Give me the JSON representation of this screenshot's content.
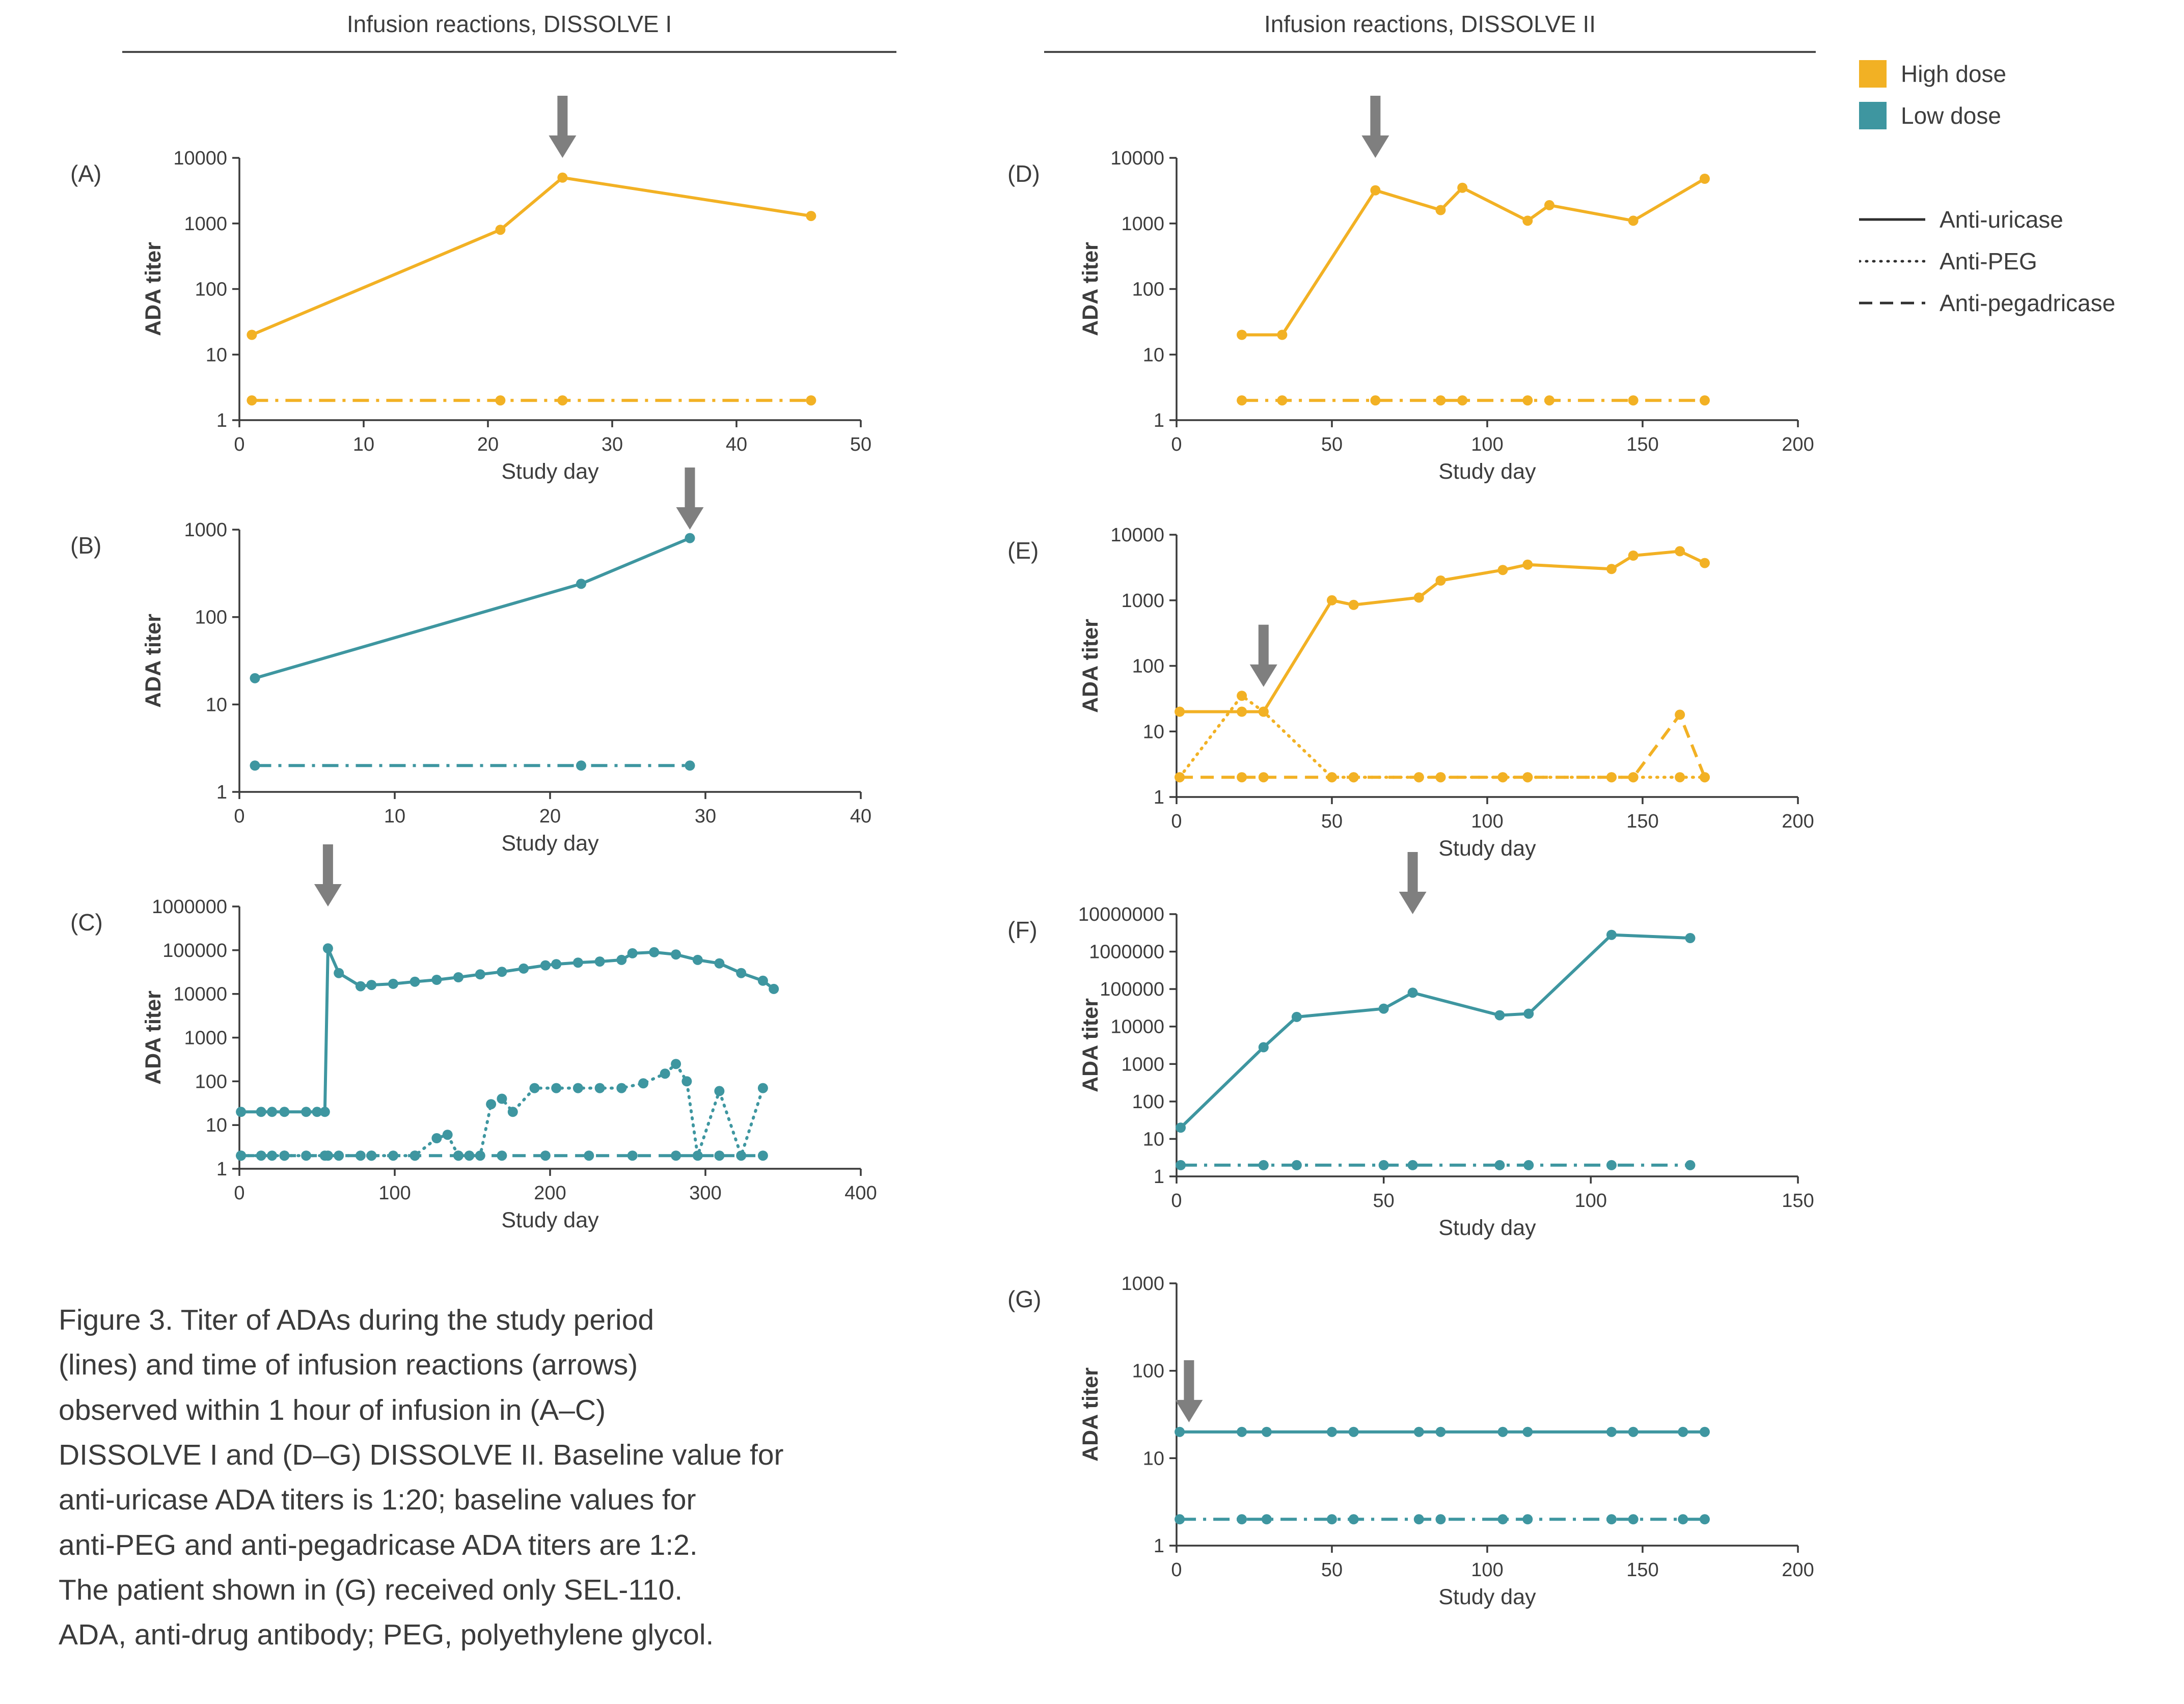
{
  "headers": {
    "left": "Infusion reactions, DISSOLVE I",
    "right": "Infusion reactions, DISSOLVE II"
  },
  "legend": {
    "dose_items": [
      {
        "label": "High dose",
        "color": "#F2B124"
      },
      {
        "label": "Low dose",
        "color": "#3E96A0"
      }
    ],
    "line_items": [
      {
        "label": "Anti-uricase",
        "style": "solid"
      },
      {
        "label": "Anti-PEG",
        "style": "dotted"
      },
      {
        "label": "Anti-pegadricase",
        "style": "dashed"
      }
    ],
    "line_color": "#2f2f2f"
  },
  "caption": {
    "lines": [
      "Figure 3. Titer of ADAs during the study period",
      "(lines) and time of infusion reactions (arrows)",
      "observed within 1 hour of infusion in (A–C)",
      "DISSOLVE I and (D–G) DISSOLVE II. Baseline value for",
      "anti-uricase ADA titers is 1:20; baseline values for",
      "anti-PEG and anti-pegadricase ADA titers are 1:2.",
      "The patient shown in (G) received only SEL-110.",
      "ADA, anti-drug antibody; PEG, polyethylene glycol."
    ]
  },
  "arrow_color": "#7f7f7f",
  "chart_data": [
    {
      "panel": "A",
      "label": "(A)",
      "type": "line",
      "color": "#F2B124",
      "xlabel": "Study day",
      "ylabel": "ADA titer",
      "xlim": [
        0,
        50
      ],
      "xticks": [
        0,
        10,
        20,
        30,
        40,
        50
      ],
      "ylim": [
        1,
        10000
      ],
      "arrow": {
        "x": 26,
        "tip_frac": 0
      },
      "series": [
        {
          "name": "Anti-uricase",
          "style": "solid",
          "x": [
            1,
            21,
            26,
            46
          ],
          "y": [
            20,
            800,
            5000,
            1300
          ]
        },
        {
          "name": "Anti-PEG / Anti-pegadricase baseline",
          "style": "dashdot",
          "x": [
            1,
            21,
            26,
            46
          ],
          "y": [
            2,
            2,
            2,
            2
          ]
        }
      ]
    },
    {
      "panel": "B",
      "label": "(B)",
      "type": "line",
      "color": "#3E96A0",
      "xlabel": "Study day",
      "ylabel": "ADA titer",
      "xlim": [
        0,
        40
      ],
      "xticks": [
        0,
        10,
        20,
        30,
        40
      ],
      "ylim": [
        1,
        1000
      ],
      "arrow": {
        "x": 29,
        "tip_frac": 0
      },
      "series": [
        {
          "name": "Anti-uricase",
          "style": "solid",
          "x": [
            1,
            22,
            29
          ],
          "y": [
            20,
            240,
            800
          ]
        },
        {
          "name": "Anti-PEG / Anti-pegadricase baseline",
          "style": "dashdot",
          "x": [
            1,
            22,
            29
          ],
          "y": [
            2,
            2,
            2
          ]
        }
      ]
    },
    {
      "panel": "C",
      "label": "(C)",
      "type": "line",
      "color": "#3E96A0",
      "xlabel": "Study day",
      "ylabel": "ADA titer",
      "xlim": [
        0,
        400
      ],
      "xticks": [
        0,
        100,
        200,
        300,
        400
      ],
      "ylim": [
        1,
        1000000
      ],
      "arrow": {
        "x": 57,
        "tip_frac": 0
      },
      "series": [
        {
          "name": "Anti-uricase",
          "style": "solid",
          "x": [
            1,
            14,
            21,
            29,
            43,
            50,
            55,
            57,
            64,
            78,
            85,
            99,
            113,
            127,
            141,
            155,
            169,
            183,
            197,
            204,
            218,
            232,
            246,
            253,
            267,
            281,
            295,
            309,
            323,
            337,
            344
          ],
          "y": [
            20,
            20,
            20,
            20,
            20,
            20,
            20,
            110000,
            30000,
            15000,
            16000,
            17000,
            19000,
            21000,
            24000,
            28000,
            32000,
            38000,
            45000,
            48000,
            52000,
            55000,
            60000,
            85000,
            90000,
            80000,
            60000,
            50000,
            30000,
            20000,
            13000
          ]
        },
        {
          "name": "Anti-PEG",
          "style": "dotted",
          "x": [
            1,
            14,
            21,
            29,
            43,
            55,
            64,
            78,
            85,
            99,
            113,
            127,
            134,
            141,
            148,
            155,
            162,
            169,
            176,
            190,
            204,
            218,
            232,
            246,
            260,
            274,
            281,
            288,
            295,
            309,
            323,
            337
          ],
          "y": [
            2,
            2,
            2,
            2,
            2,
            2,
            2,
            2,
            2,
            2,
            2,
            5,
            6,
            2,
            2,
            2,
            30,
            40,
            20,
            70,
            70,
            70,
            70,
            70,
            90,
            150,
            250,
            100,
            2,
            60,
            2,
            70
          ]
        },
        {
          "name": "Anti-pegadricase",
          "style": "dashed",
          "x": [
            1,
            29,
            57,
            85,
            113,
            141,
            169,
            197,
            225,
            253,
            281,
            309,
            337
          ],
          "y": [
            2,
            2,
            2,
            2,
            2,
            2,
            2,
            2,
            2,
            2,
            2,
            2,
            2
          ]
        }
      ]
    },
    {
      "panel": "D",
      "label": "(D)",
      "type": "line",
      "color": "#F2B124",
      "xlabel": "Study day",
      "ylabel": "ADA titer",
      "xlim": [
        0,
        200
      ],
      "xticks": [
        0,
        50,
        100,
        150,
        200
      ],
      "ylim": [
        1,
        10000
      ],
      "arrow": {
        "x": 64,
        "tip_frac": 0
      },
      "series": [
        {
          "name": "Anti-uricase",
          "style": "solid",
          "x": [
            21,
            34,
            64,
            85,
            92,
            113,
            120,
            147,
            170
          ],
          "y": [
            20,
            20,
            3200,
            1600,
            3500,
            1100,
            1900,
            1100,
            4800
          ]
        },
        {
          "name": "Anti-PEG / Anti-pegadricase baseline",
          "style": "dashdot",
          "x": [
            21,
            34,
            64,
            85,
            92,
            113,
            120,
            147,
            170
          ],
          "y": [
            2,
            2,
            2,
            2,
            2,
            2,
            2,
            2,
            2
          ]
        }
      ]
    },
    {
      "panel": "E",
      "label": "(E)",
      "type": "line",
      "color": "#F2B124",
      "xlabel": "Study day",
      "ylabel": "ADA titer",
      "xlim": [
        0,
        200
      ],
      "xticks": [
        0,
        50,
        100,
        150,
        200
      ],
      "ylim": [
        1,
        10000
      ],
      "arrow": {
        "x": 28,
        "tip_frac": 0.58
      },
      "series": [
        {
          "name": "Anti-uricase",
          "style": "solid",
          "x": [
            1,
            21,
            28,
            50,
            57,
            78,
            85,
            105,
            113,
            140,
            147,
            162,
            170
          ],
          "y": [
            20,
            20,
            20,
            1000,
            850,
            1100,
            2000,
            2900,
            3500,
            3000,
            4800,
            5600,
            3700
          ]
        },
        {
          "name": "Anti-PEG",
          "style": "dotted",
          "x": [
            1,
            21,
            28,
            50,
            57,
            78,
            85,
            105,
            113,
            140,
            147,
            162,
            170
          ],
          "y": [
            2,
            35,
            20,
            2,
            2,
            2,
            2,
            2,
            2,
            2,
            2,
            2,
            2
          ]
        },
        {
          "name": "Anti-pegadricase",
          "style": "dashed",
          "x": [
            1,
            21,
            28,
            50,
            57,
            78,
            85,
            105,
            113,
            140,
            147,
            162,
            170
          ],
          "y": [
            2,
            2,
            2,
            2,
            2,
            2,
            2,
            2,
            2,
            2,
            2,
            18,
            2
          ]
        }
      ]
    },
    {
      "panel": "F",
      "label": "(F)",
      "type": "line",
      "color": "#3E96A0",
      "xlabel": "Study day",
      "ylabel": "ADA titer",
      "xlim": [
        0,
        150
      ],
      "xticks": [
        0,
        50,
        100,
        150
      ],
      "ylim": [
        1,
        10000000
      ],
      "arrow": {
        "x": 57,
        "tip_frac": 0
      },
      "series": [
        {
          "name": "Anti-uricase",
          "style": "solid",
          "x": [
            1,
            21,
            29,
            50,
            57,
            78,
            85,
            105,
            124
          ],
          "y": [
            20,
            2800,
            18000,
            30000,
            80000,
            20000,
            22000,
            2800000,
            2300000
          ]
        },
        {
          "name": "Anti-PEG / Anti-pegadricase baseline",
          "style": "dashdot",
          "x": [
            1,
            21,
            29,
            50,
            57,
            78,
            85,
            105,
            124
          ],
          "y": [
            2,
            2,
            2,
            2,
            2,
            2,
            2,
            2,
            2
          ]
        }
      ]
    },
    {
      "panel": "G",
      "label": "(G)",
      "type": "line",
      "color": "#3E96A0",
      "xlabel": "Study day",
      "ylabel": "ADA titer",
      "xlim": [
        0,
        200
      ],
      "xticks": [
        0,
        50,
        100,
        150,
        200
      ],
      "ylim": [
        1,
        1000
      ],
      "arrow": {
        "x": 4,
        "tip_frac": 0.53
      },
      "series": [
        {
          "name": "Anti-uricase",
          "style": "solid",
          "x": [
            1,
            21,
            29,
            50,
            57,
            78,
            85,
            105,
            113,
            140,
            147,
            163,
            170
          ],
          "y": [
            20,
            20,
            20,
            20,
            20,
            20,
            20,
            20,
            20,
            20,
            20,
            20,
            20
          ]
        },
        {
          "name": "Anti-PEG / Anti-pegadricase baseline",
          "style": "dashdot",
          "x": [
            1,
            21,
            29,
            50,
            57,
            78,
            85,
            105,
            113,
            140,
            147,
            163,
            170
          ],
          "y": [
            2,
            2,
            2,
            2,
            2,
            2,
            2,
            2,
            2,
            2,
            2,
            2,
            2
          ]
        }
      ]
    }
  ]
}
